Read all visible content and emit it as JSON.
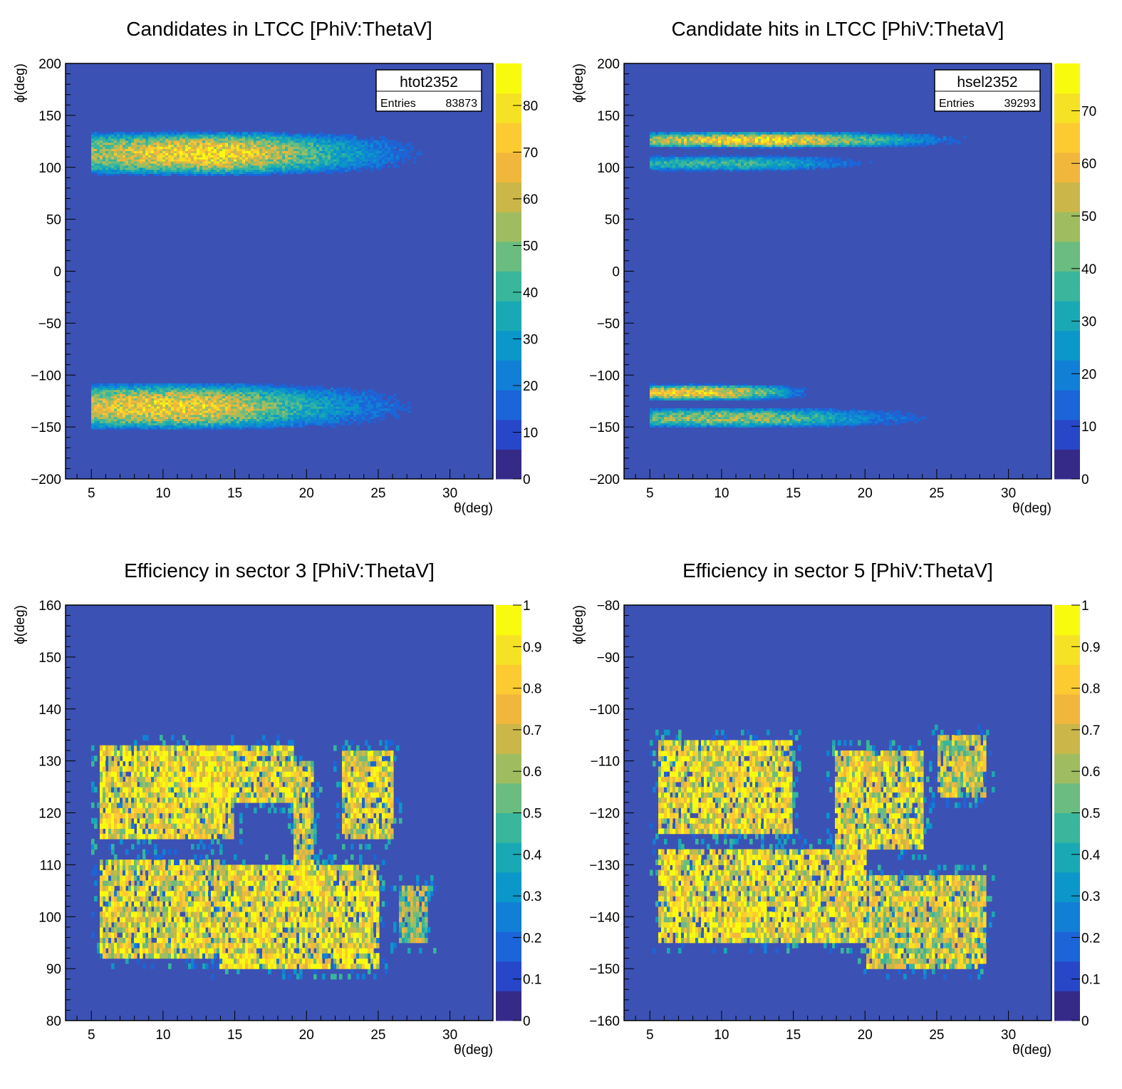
{
  "palette": [
    "#352a87",
    "#2747c8",
    "#1b65d8",
    "#127fd6",
    "#0b97c9",
    "#1aa9b4",
    "#39b69c",
    "#6abc80",
    "#9fbd60",
    "#cbb749",
    "#f1b73d",
    "#fccb32",
    "#f6e224",
    "#f9fb0e"
  ],
  "background_color": "#3c51b4",
  "chart_data": [
    {
      "type": "heatmap",
      "title": "Candidates in LTCC [PhiV:ThetaV]",
      "xlabel": "θ(deg)",
      "ylabel": "ϕ(deg)",
      "xlim": [
        3.2,
        33
      ],
      "ylim": [
        -200,
        200
      ],
      "x_ticks": [
        5,
        10,
        15,
        20,
        25,
        30
      ],
      "y_ticks": [
        -200,
        -150,
        -100,
        -50,
        0,
        50,
        100,
        150,
        200
      ],
      "zlim": [
        0,
        89
      ],
      "z_ticks": [
        0,
        10,
        20,
        30,
        40,
        50,
        60,
        70,
        80
      ],
      "stats_box": {
        "name": "htot2352",
        "entries_label": "Entries",
        "entries_value": "83873"
      },
      "regions": [
        {
          "x": [
            5.5,
            29
          ],
          "y": [
            90,
            137
          ],
          "peak_x": 13,
          "peak_y": 125,
          "peak": 0.85,
          "shape": "band"
        },
        {
          "x": [
            5.5,
            29
          ],
          "y": [
            -155,
            -105
          ],
          "peak_x": 10,
          "peak_y": -130,
          "peak": 0.8,
          "shape": "band"
        }
      ]
    },
    {
      "type": "heatmap",
      "title": "Candidate hits in LTCC [PhiV:ThetaV]",
      "xlabel": "θ(deg)",
      "ylabel": "ϕ(deg)",
      "xlim": [
        3.2,
        33
      ],
      "ylim": [
        -200,
        200
      ],
      "x_ticks": [
        5,
        10,
        15,
        20,
        25,
        30
      ],
      "y_ticks": [
        -200,
        -150,
        -100,
        -50,
        0,
        50,
        100,
        150,
        200
      ],
      "zlim": [
        0,
        79
      ],
      "z_ticks": [
        0,
        10,
        20,
        30,
        40,
        50,
        60,
        70
      ],
      "stats_box": {
        "name": "hsel2352",
        "entries_label": "Entries",
        "entries_value": "39293"
      },
      "regions": [
        {
          "x": [
            5.5,
            28
          ],
          "y": [
            118,
            135
          ],
          "peak_x": 13,
          "peak_y": 128,
          "peak": 0.85,
          "shape": "band"
        },
        {
          "x": [
            5.5,
            23
          ],
          "y": [
            95,
            113
          ],
          "peak_x": 10,
          "peak_y": 104,
          "peak": 0.45,
          "shape": "band"
        },
        {
          "x": [
            5.5,
            16
          ],
          "y": [
            -125,
            -108
          ],
          "peak_x": 9,
          "peak_y": -117,
          "peak": 0.8,
          "shape": "band"
        },
        {
          "x": [
            5.5,
            27
          ],
          "y": [
            -152,
            -130
          ],
          "peak_x": 10,
          "peak_y": -135,
          "peak": 0.6,
          "shape": "band"
        }
      ]
    },
    {
      "type": "heatmap",
      "title": "Efficiency in sector 3 [PhiV:ThetaV]",
      "xlabel": "θ(deg)",
      "ylabel": "ϕ(deg)",
      "xlim": [
        3.2,
        33
      ],
      "ylim": [
        80,
        160
      ],
      "x_ticks": [
        5,
        10,
        15,
        20,
        25,
        30
      ],
      "y_ticks": [
        80,
        90,
        100,
        110,
        120,
        130,
        140,
        150,
        160
      ],
      "zlim": [
        0,
        1
      ],
      "z_ticks": [
        0,
        0.1,
        0.2,
        0.3,
        0.4,
        0.5,
        0.6,
        0.7,
        0.8,
        0.9,
        1
      ],
      "regions": [
        {
          "x": [
            5.5,
            15
          ],
          "y": [
            115,
            133
          ],
          "peak": 0.95,
          "shape": "block"
        },
        {
          "x": [
            12,
            19
          ],
          "y": [
            122,
            133
          ],
          "peak": 0.9,
          "shape": "block"
        },
        {
          "x": [
            19,
            20.5
          ],
          "y": [
            105,
            130
          ],
          "peak": 0.85,
          "shape": "block"
        },
        {
          "x": [
            22.5,
            26
          ],
          "y": [
            115,
            132
          ],
          "peak": 0.9,
          "shape": "block"
        },
        {
          "x": [
            5.5,
            14
          ],
          "y": [
            92,
            111
          ],
          "peak": 0.9,
          "shape": "block"
        },
        {
          "x": [
            14,
            25
          ],
          "y": [
            90,
            110
          ],
          "peak": 0.95,
          "shape": "block"
        },
        {
          "x": [
            26.5,
            28.5
          ],
          "y": [
            95,
            106
          ],
          "peak": 0.7,
          "shape": "block"
        }
      ]
    },
    {
      "type": "heatmap",
      "title": "Efficiency in sector 5 [PhiV:ThetaV]",
      "xlabel": "θ(deg)",
      "ylabel": "ϕ(deg)",
      "xlim": [
        3.2,
        33
      ],
      "ylim": [
        -160,
        -80
      ],
      "x_ticks": [
        5,
        10,
        15,
        20,
        25,
        30
      ],
      "y_ticks": [
        -160,
        -150,
        -140,
        -130,
        -120,
        -110,
        -100,
        -90,
        -80
      ],
      "zlim": [
        0,
        1
      ],
      "z_ticks": [
        0,
        0.1,
        0.2,
        0.3,
        0.4,
        0.5,
        0.6,
        0.7,
        0.8,
        0.9,
        1
      ],
      "regions": [
        {
          "x": [
            5.5,
            15
          ],
          "y": [
            -124,
            -106
          ],
          "peak": 0.95,
          "shape": "block"
        },
        {
          "x": [
            5.5,
            20
          ],
          "y": [
            -145,
            -127
          ],
          "peak": 0.95,
          "shape": "block"
        },
        {
          "x": [
            18,
            24
          ],
          "y": [
            -127,
            -108
          ],
          "peak": 0.9,
          "shape": "block"
        },
        {
          "x": [
            25,
            28.5
          ],
          "y": [
            -117,
            -105
          ],
          "peak": 0.8,
          "shape": "block"
        },
        {
          "x": [
            20,
            28.5
          ],
          "y": [
            -150,
            -132
          ],
          "peak": 0.85,
          "shape": "block"
        }
      ]
    }
  ]
}
